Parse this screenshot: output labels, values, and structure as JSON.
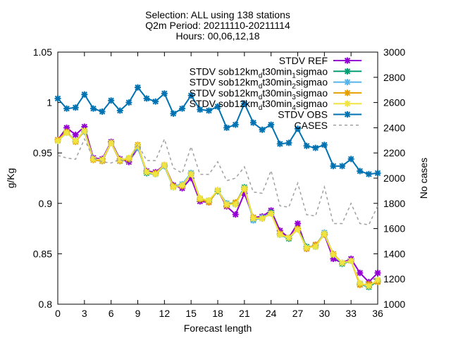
{
  "chart_data": {
    "type": "line",
    "title_lines": [
      "Selection: ALL using    138 stations",
      "Q2m   Period: 20211110-20211114",
      "Hours: 00,06,12,18"
    ],
    "xlabel": "Forecast length",
    "ylabel": "g/Kg",
    "y2label": "No cases",
    "xlim": [
      0,
      36
    ],
    "ylim": [
      0.8,
      1.05
    ],
    "y2lim": [
      1000,
      3000
    ],
    "xticks": [
      0,
      3,
      6,
      9,
      12,
      15,
      18,
      21,
      24,
      27,
      30,
      33,
      36
    ],
    "yticks": [
      "0.8",
      "0.85",
      "0.9",
      "0.95",
      "1",
      "1.05"
    ],
    "y2ticks": [
      "1000",
      "1200",
      "1400",
      "1600",
      "1800",
      "2000",
      "2200",
      "2400",
      "2600",
      "2800",
      "3000"
    ],
    "x": [
      0,
      1,
      2,
      3,
      4,
      5,
      6,
      7,
      8,
      9,
      10,
      11,
      12,
      13,
      14,
      15,
      16,
      17,
      18,
      19,
      20,
      21,
      22,
      23,
      24,
      25,
      26,
      27,
      28,
      29,
      30,
      31,
      32,
      33,
      34,
      35,
      36
    ],
    "series": [
      {
        "name": "STDV REF",
        "color": "#9400d3",
        "axis": "y1",
        "values": [
          0.963,
          0.975,
          0.968,
          0.976,
          0.945,
          0.944,
          0.961,
          0.944,
          0.941,
          0.955,
          0.932,
          0.931,
          0.938,
          0.918,
          0.915,
          0.925,
          0.902,
          0.901,
          0.913,
          0.897,
          0.889,
          0.91,
          0.886,
          0.887,
          0.893,
          0.873,
          0.866,
          0.88,
          0.855,
          0.859,
          0.869,
          0.845,
          0.841,
          0.845,
          0.831,
          0.822,
          0.831
        ]
      },
      {
        "name_parts": [
          "STDV sob12km",
          "d",
          "t30min",
          "1",
          "sigmao"
        ],
        "color": "#009e73",
        "axis": "y1",
        "values": [
          0.962,
          0.97,
          0.962,
          0.972,
          0.944,
          0.942,
          0.96,
          0.942,
          0.944,
          0.956,
          0.93,
          0.929,
          0.937,
          0.916,
          0.918,
          0.93,
          0.904,
          0.903,
          0.912,
          0.9,
          0.9,
          0.916,
          0.884,
          0.885,
          0.891,
          0.869,
          0.865,
          0.875,
          0.857,
          0.857,
          0.87,
          0.849,
          0.84,
          0.843,
          0.82,
          0.817,
          0.823
        ]
      },
      {
        "name_parts": [
          "STDV sob12km",
          "d",
          "t30min",
          "2",
          "sigmao"
        ],
        "color": "#56b4e9",
        "axis": "y1",
        "values": [
          0.962,
          0.971,
          0.962,
          0.971,
          0.944,
          0.943,
          0.96,
          0.943,
          0.945,
          0.955,
          0.931,
          0.929,
          0.937,
          0.917,
          0.919,
          0.93,
          0.905,
          0.902,
          0.913,
          0.9,
          0.899,
          0.915,
          0.883,
          0.886,
          0.89,
          0.869,
          0.866,
          0.874,
          0.856,
          0.858,
          0.871,
          0.849,
          0.841,
          0.843,
          0.82,
          0.818,
          0.824
        ]
      },
      {
        "name_parts": [
          "STDV sob12km",
          "d",
          "t30min",
          "3",
          "sigmao"
        ],
        "color": "#e69f00",
        "axis": "y1",
        "values": [
          0.963,
          0.971,
          0.961,
          0.972,
          0.943,
          0.942,
          0.96,
          0.942,
          0.944,
          0.958,
          0.931,
          0.93,
          0.938,
          0.917,
          0.917,
          0.929,
          0.904,
          0.901,
          0.913,
          0.898,
          0.901,
          0.914,
          0.886,
          0.885,
          0.89,
          0.87,
          0.866,
          0.875,
          0.855,
          0.859,
          0.869,
          0.85,
          0.841,
          0.843,
          0.819,
          0.82,
          0.822
        ]
      },
      {
        "name_parts": [
          "STDV sob12km",
          "d",
          "t30min",
          "4",
          "sigmao"
        ],
        "color": "#f0e442",
        "axis": "y1",
        "values": [
          0.962,
          0.97,
          0.962,
          0.972,
          0.944,
          0.943,
          0.96,
          0.943,
          0.945,
          0.957,
          0.931,
          0.929,
          0.938,
          0.916,
          0.918,
          0.929,
          0.905,
          0.903,
          0.913,
          0.899,
          0.899,
          0.915,
          0.885,
          0.885,
          0.89,
          0.869,
          0.866,
          0.874,
          0.856,
          0.857,
          0.87,
          0.849,
          0.841,
          0.843,
          0.821,
          0.818,
          0.824
        ]
      },
      {
        "name": "STDV OBS",
        "color": "#0072b2",
        "axis": "y1",
        "values": [
          1.004,
          0.994,
          0.995,
          1.008,
          0.994,
          0.991,
          1.002,
          0.992,
          1.0,
          1.015,
          1.004,
          1.001,
          1.009,
          0.989,
          0.994,
          1.007,
          0.993,
          0.992,
          0.996,
          0.975,
          0.978,
          0.999,
          0.98,
          0.973,
          0.978,
          0.959,
          0.96,
          0.974,
          0.957,
          0.955,
          0.958,
          0.937,
          0.937,
          0.944,
          0.932,
          0.929,
          0.93
        ]
      },
      {
        "name": "CASES",
        "color": "#a0a0a0",
        "axis": "y2",
        "dashed": true,
        "values": [
          2180,
          2160,
          2150,
          2310,
          2160,
          2130,
          2120,
          2150,
          2110,
          2270,
          2140,
          2140,
          2310,
          2080,
          2040,
          2250,
          2030,
          2030,
          2130,
          1980,
          2000,
          2090,
          1890,
          1880,
          2060,
          1780,
          1770,
          1960,
          1710,
          1700,
          1930,
          1640,
          1640,
          1800,
          1640,
          1630,
          1780
        ]
      }
    ]
  }
}
